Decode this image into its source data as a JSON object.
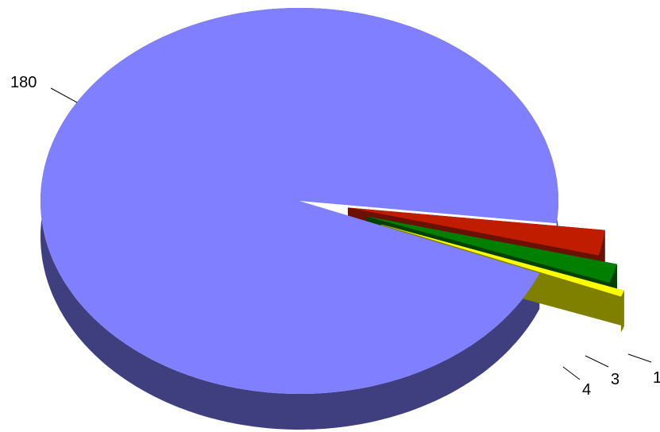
{
  "chart_data": {
    "type": "pie",
    "style": "3d-exploded",
    "values": [
      180,
      4,
      3,
      1
    ],
    "colors": [
      {
        "top": "#7f7fff",
        "side": "#3f3f7f"
      },
      {
        "top": "#c01c00",
        "side": "#6b1004"
      },
      {
        "top": "#007f00",
        "side": "#004000"
      },
      {
        "top": "#ffff00",
        "side": "#808000"
      }
    ],
    "title": "",
    "legend": "none",
    "data_labels": [
      "180",
      "4",
      "3",
      "1"
    ]
  }
}
